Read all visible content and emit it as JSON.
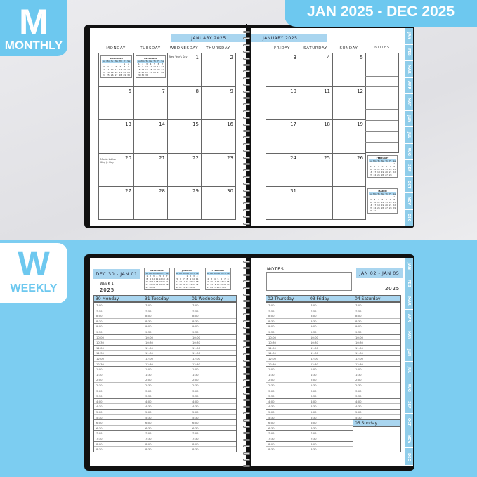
{
  "badges": {
    "monthly_letter": "M",
    "monthly_label": "MONTHLY",
    "weekly_letter": "W",
    "weekly_label": "WEEKLY",
    "date_range": "JAN 2025 - DEC 2025"
  },
  "colors": {
    "accent": "#6dc8ef",
    "header_fill": "#a9d5ef",
    "cover": "#111111"
  },
  "tabs": [
    "JAN",
    "FEB",
    "MAR",
    "APR",
    "MAY",
    "JUN",
    "JUL",
    "AUG",
    "SEP",
    "OCT",
    "NOV",
    "DEC"
  ],
  "monthly": {
    "month_title": "JANUARY 2025",
    "left_days": [
      "MONDAY",
      "TUESDAY",
      "WEDNESDAY",
      "THURSDAY"
    ],
    "right_days": [
      "FRIDAY",
      "SATURDAY",
      "SUNDAY"
    ],
    "notes_label": "NOTES",
    "left_rows": [
      [
        "mini:0",
        "mini:1",
        "1",
        "2"
      ],
      [
        "6",
        "7",
        "8",
        "9"
      ],
      [
        "13",
        "14",
        "15",
        "16"
      ],
      [
        "20",
        "21",
        "22",
        "23"
      ],
      [
        "27",
        "28",
        "29",
        "30"
      ]
    ],
    "right_rows": [
      [
        "3",
        "4",
        "5"
      ],
      [
        "10",
        "11",
        "12"
      ],
      [
        "17",
        "18",
        "19"
      ],
      [
        "24",
        "25",
        "26"
      ],
      [
        "31",
        "",
        ""
      ]
    ],
    "holidays": {
      "1": "New Year's Day",
      "20": "Martin Luther King Jr. Day"
    },
    "mini_calendars": [
      {
        "title": "NOVEMBER",
        "start": 5,
        "days": 30
      },
      {
        "title": "DECEMBER",
        "start": 0,
        "days": 31
      },
      {
        "title": "FEBRUARY",
        "start": 6,
        "days": 28
      },
      {
        "title": "MARCH",
        "start": 6,
        "days": 31
      }
    ],
    "weekday_abbr": [
      "Su",
      "Mo",
      "Tu",
      "We",
      "Th",
      "Fr",
      "Sa"
    ]
  },
  "weekly": {
    "left_range": "DEC 30 - JAN 01",
    "week_label": "WEEK 1",
    "year": "2025",
    "right_range": "JAN 02 - JAN 05",
    "notes_label": "NOTES:",
    "mini_calendars": [
      {
        "title": "DECEMBER",
        "start": 0,
        "days": 31
      },
      {
        "title": "JANUARY",
        "start": 3,
        "days": 31
      },
      {
        "title": "FEBRUARY",
        "start": 6,
        "days": 28
      }
    ],
    "left_days": [
      "30 Monday",
      "31 Tuesday",
      "01 Wednesday"
    ],
    "right_days": [
      "02 Thursday",
      "03 Friday",
      "04 Saturday"
    ],
    "sunday": "05 Sunday",
    "times": [
      "7:00",
      "7:30",
      "8:00",
      "8:30",
      "9:00",
      "9:30",
      "10:00",
      "10:30",
      "11:00",
      "11:30",
      "12:00",
      "12:30",
      "1:00",
      "1:30",
      "2:00",
      "2:30",
      "3:00",
      "3:30",
      "4:00",
      "4:30",
      "5:00",
      "5:30",
      "6:00",
      "6:30",
      "7:00",
      "7:30",
      "8:00",
      "8:30"
    ]
  }
}
